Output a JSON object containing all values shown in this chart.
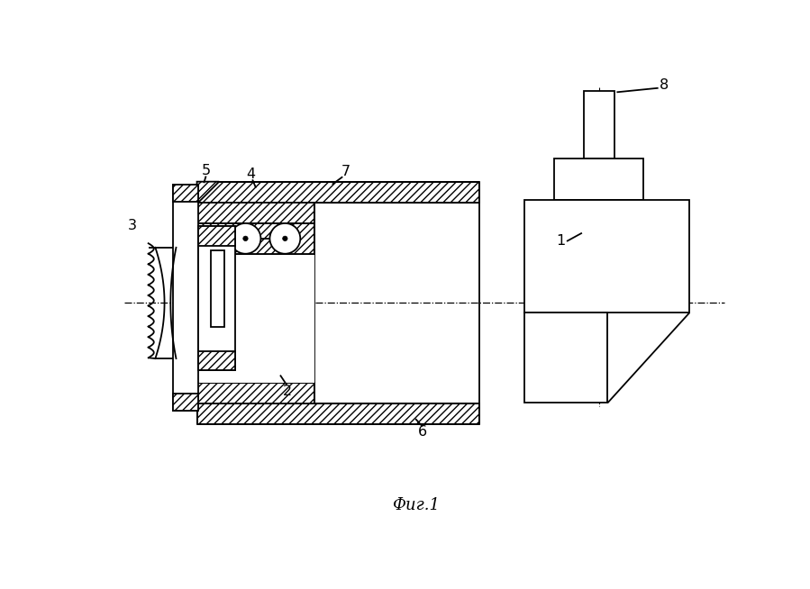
{
  "bg_color": "#ffffff",
  "line_color": "#000000",
  "title": "Фиг.1",
  "title_fontsize": 13,
  "fig_width": 8.99,
  "fig_height": 6.54,
  "dpi": 100
}
